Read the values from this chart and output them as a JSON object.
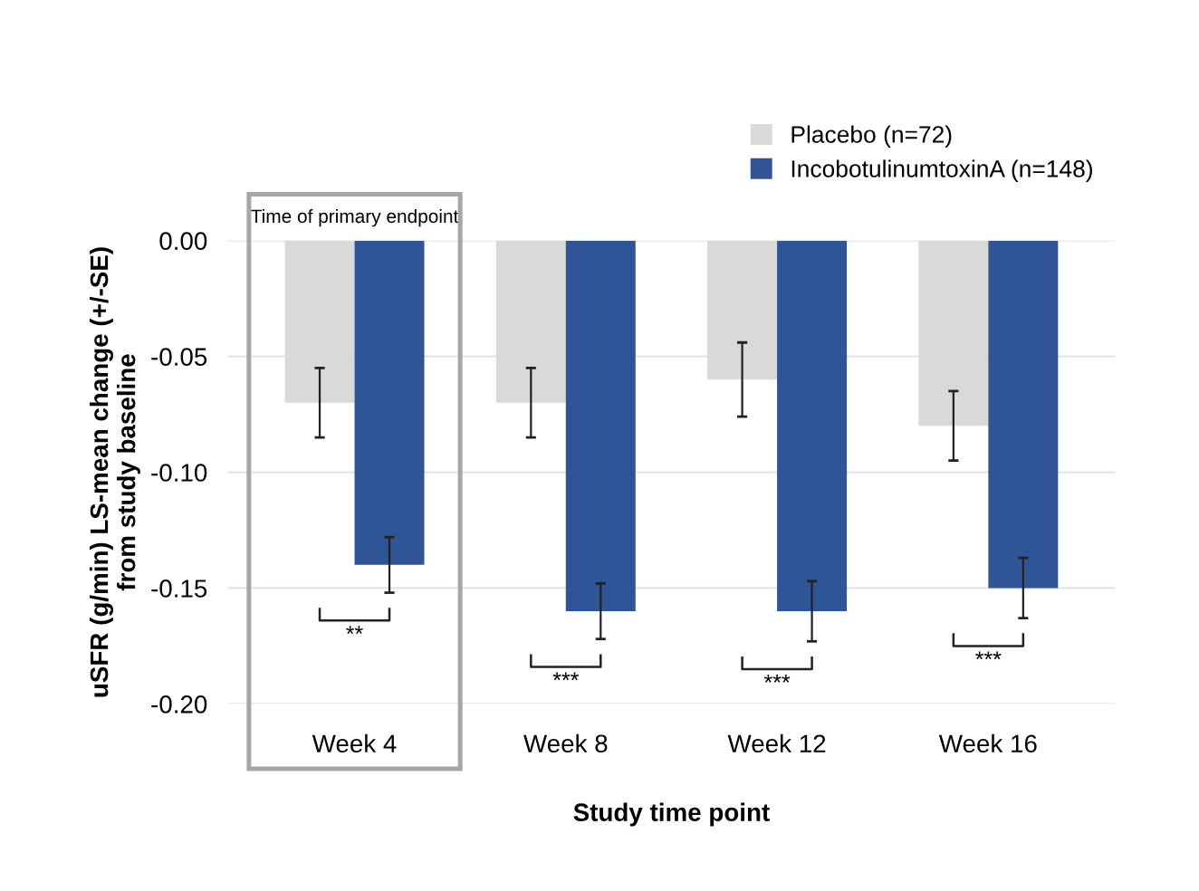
{
  "chart_data": {
    "type": "bar",
    "xlabel": "Study time point",
    "ylabel": "uSFR (g/min) LS-mean change (+/-SE)\nfrom study baseline",
    "categories": [
      "Week 4",
      "Week 8",
      "Week 12",
      "Week 16"
    ],
    "series": [
      {
        "name": "Placebo (n=72)",
        "color": "#d9d9d9",
        "values": [
          -0.07,
          -0.07,
          -0.06,
          -0.08
        ],
        "errors": [
          0.015,
          0.015,
          0.016,
          0.015
        ]
      },
      {
        "name": "IncobotulinumtoxinA (n=148)",
        "color": "#2f5597",
        "values": [
          -0.14,
          -0.16,
          -0.16,
          -0.15
        ],
        "errors": [
          0.012,
          0.012,
          0.013,
          0.013
        ]
      }
    ],
    "ylim": [
      -0.2,
      0.0
    ],
    "yticks": [
      {
        "value": -0.2,
        "label": "-0.20"
      },
      {
        "value": -0.15,
        "label": "-0.15"
      },
      {
        "value": -0.1,
        "label": "-0.10"
      },
      {
        "value": -0.05,
        "label": "-0.05"
      },
      {
        "value": 0.0,
        "label": "0.00"
      }
    ],
    "grid": "y",
    "legend": "top right",
    "annotations": [
      "Time of primary endpoint",
      "**",
      "***",
      "***",
      "***"
    ]
  }
}
